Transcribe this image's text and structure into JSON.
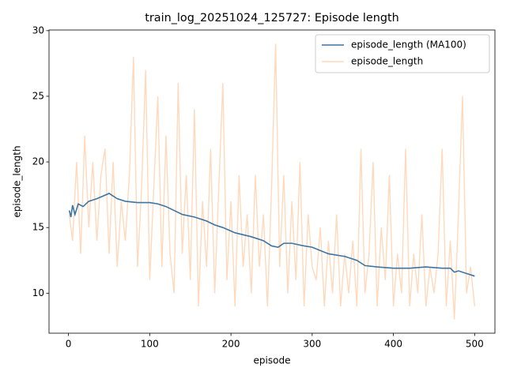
{
  "chart_data": {
    "type": "line",
    "title": "train_log_20251024_125727: Episode length",
    "x_label": "episode",
    "y_label": "episode_length",
    "xlim": [
      -23.95,
      524.95
    ],
    "xticks": [
      0,
      100,
      200,
      300,
      400,
      500
    ],
    "ylim": [
      6.95,
      30.05
    ],
    "yticks": [
      10,
      15,
      20,
      25,
      30
    ],
    "legend": "upper right",
    "series": [
      {
        "name": "episode_length (MA100)",
        "color": "#3b75a3",
        "x": [
          1,
          3,
          5,
          8,
          12,
          18,
          25,
          35,
          50,
          60,
          70,
          85,
          100,
          110,
          120,
          130,
          140,
          155,
          170,
          180,
          190,
          205,
          225,
          240,
          250,
          258,
          265,
          275,
          290,
          300,
          320,
          340,
          355,
          365,
          380,
          400,
          420,
          440,
          460,
          470,
          475,
          480,
          490,
          500
        ],
        "values": [
          16.3,
          15.8,
          16.7,
          16.0,
          16.8,
          16.6,
          17.0,
          17.2,
          17.6,
          17.2,
          17.0,
          16.9,
          16.9,
          16.8,
          16.6,
          16.3,
          16.0,
          15.8,
          15.5,
          15.2,
          15.0,
          14.6,
          14.3,
          14.0,
          13.6,
          13.5,
          13.8,
          13.8,
          13.6,
          13.5,
          13.0,
          12.8,
          12.5,
          12.1,
          12.0,
          11.9,
          11.9,
          12.0,
          11.9,
          11.9,
          11.6,
          11.7,
          11.5,
          11.3
        ]
      },
      {
        "name": "episode_length",
        "color": "#ffd9bb",
        "x": [
          1,
          5,
          10,
          15,
          20,
          25,
          30,
          35,
          40,
          45,
          50,
          55,
          60,
          65,
          70,
          75,
          80,
          85,
          90,
          95,
          100,
          105,
          110,
          115,
          120,
          125,
          130,
          135,
          140,
          145,
          150,
          155,
          160,
          165,
          170,
          175,
          180,
          185,
          190,
          195,
          200,
          205,
          210,
          215,
          220,
          225,
          230,
          235,
          240,
          245,
          250,
          255,
          260,
          265,
          270,
          275,
          280,
          285,
          290,
          295,
          300,
          305,
          310,
          315,
          320,
          325,
          330,
          335,
          340,
          345,
          350,
          355,
          360,
          365,
          370,
          375,
          380,
          385,
          390,
          395,
          400,
          405,
          410,
          415,
          420,
          425,
          430,
          435,
          440,
          445,
          450,
          455,
          460,
          465,
          470,
          475,
          480,
          485,
          490,
          495,
          500
        ],
        "values": [
          16,
          14,
          20,
          13,
          22,
          15,
          20,
          14,
          19,
          21,
          13,
          20,
          12,
          17,
          14,
          19,
          28,
          12,
          18,
          27,
          11,
          18,
          25,
          12,
          22,
          13,
          10,
          26,
          13,
          19,
          11,
          24,
          9,
          17,
          12,
          21,
          10,
          18,
          26,
          11,
          17,
          9,
          19,
          12,
          16,
          10,
          19,
          12,
          16,
          9,
          18,
          29,
          12,
          19,
          10,
          17,
          11,
          20,
          9,
          16,
          12,
          11,
          15,
          9,
          14,
          10,
          16,
          9,
          13,
          10,
          14,
          9,
          21,
          10,
          13,
          20,
          9,
          15,
          11,
          19,
          9,
          13,
          10,
          21,
          9,
          13,
          10,
          16,
          9,
          12,
          10,
          13,
          21,
          9,
          14,
          8,
          16,
          25,
          10,
          12,
          9
        ]
      }
    ]
  }
}
